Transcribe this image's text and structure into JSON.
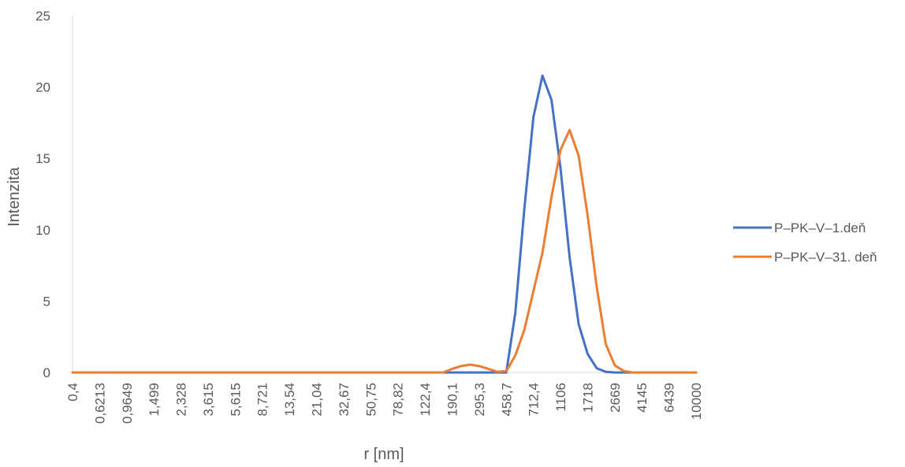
{
  "chart_data": {
    "type": "line",
    "xlabel": "r [nm]",
    "ylabel": "Intenzita",
    "ylim": [
      0,
      25
    ],
    "yticks": [
      "0",
      "5",
      "10",
      "15",
      "20",
      "25"
    ],
    "grid": false,
    "legend": "right",
    "x_tick_labels": [
      "0,4",
      "0,6213",
      "0,9649",
      "1,499",
      "2,328",
      "3,615",
      "5,615",
      "8,721",
      "13,54",
      "21,04",
      "32,67",
      "50,75",
      "78,82",
      "122,4",
      "190,1",
      "295,3",
      "458,7",
      "712,4",
      "1106",
      "1718",
      "2669",
      "4145",
      "6439",
      "10000"
    ],
    "point_count": 70,
    "series": [
      {
        "name": "P–PK–V–1.deň",
        "color": "#4472C4",
        "values": [
          0,
          0,
          0,
          0,
          0,
          0,
          0,
          0,
          0,
          0,
          0,
          0,
          0,
          0,
          0,
          0,
          0,
          0,
          0,
          0,
          0,
          0,
          0,
          0,
          0,
          0,
          0,
          0,
          0,
          0,
          0,
          0,
          0,
          0,
          0,
          0,
          0,
          0,
          0,
          0,
          0,
          0,
          0,
          0,
          0,
          0,
          0,
          0,
          0,
          4.2,
          11.5,
          17.9,
          20.8,
          19.1,
          14.3,
          8.1,
          3.4,
          1.3,
          0.3,
          0.05,
          0,
          0,
          0,
          0,
          0,
          0,
          0,
          0,
          0,
          0
        ]
      },
      {
        "name": "P–PK–V–31. deň",
        "color": "#ED7D31",
        "values": [
          0,
          0,
          0,
          0,
          0,
          0,
          0,
          0,
          0,
          0,
          0,
          0,
          0,
          0,
          0,
          0,
          0,
          0,
          0,
          0,
          0,
          0,
          0,
          0,
          0,
          0,
          0,
          0,
          0,
          0,
          0,
          0,
          0,
          0,
          0,
          0,
          0,
          0,
          0,
          0,
          0,
          0,
          0.25,
          0.45,
          0.55,
          0.45,
          0.25,
          0.05,
          0.1,
          1.2,
          3.0,
          5.7,
          8.4,
          12.3,
          15.6,
          17.0,
          15.2,
          11.0,
          6.0,
          2.0,
          0.5,
          0.1,
          0,
          0,
          0,
          0,
          0,
          0,
          0,
          0
        ]
      }
    ]
  }
}
